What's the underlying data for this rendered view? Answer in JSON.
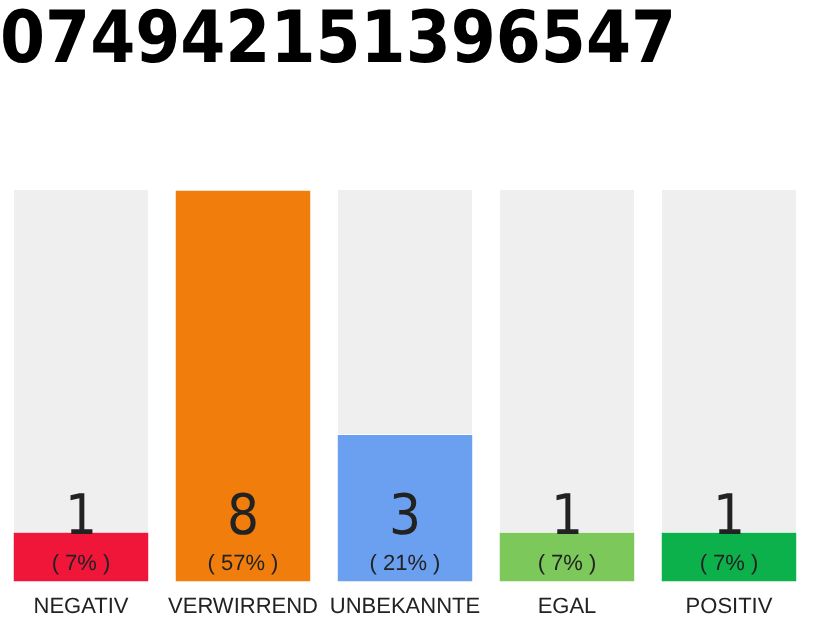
{
  "chart_data": {
    "type": "bar",
    "title": "074942151396547",
    "categories": [
      "NEGATIV",
      "VERWIRREND",
      "UNBEKANNTE",
      "EGAL",
      "POSITIV"
    ],
    "values": [
      1,
      8,
      3,
      1,
      1
    ],
    "colors": [
      "#f0163a",
      "#f07d0c",
      "#6ba0f0",
      "#7dc85a",
      "#0db14b"
    ],
    "tick_labels": "x",
    "grid": false,
    "legend": false,
    "data_labels": true,
    "annotations": [
      "( 7% )",
      "( 57% )",
      "( 21% )",
      "( 7% )",
      "( 7% )"
    ]
  }
}
